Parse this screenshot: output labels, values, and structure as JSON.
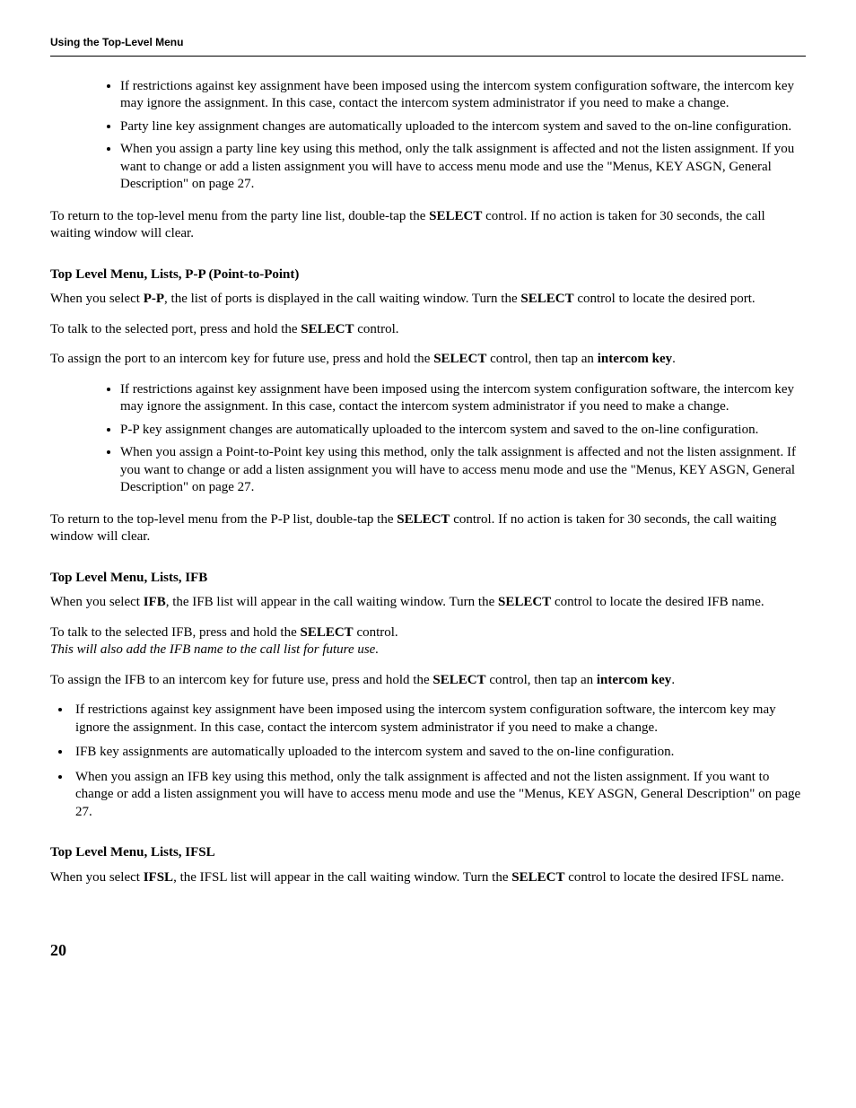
{
  "header": {
    "title": "Using the Top-Level Menu"
  },
  "section1": {
    "bullets": [
      "If restrictions against key assignment have been imposed using the intercom system configuration software, the intercom key may ignore the assignment. In this case, contact the intercom system administrator if you need to make a change.",
      "Party line key assignment changes are automatically uploaded to the intercom system and saved to the on-line configuration.",
      "When you assign a party line key using this method, only the talk assignment is affected and not the listen assignment. If you want to change or add a listen assignment you will have to access menu mode and use the \"Menus, KEY ASGN, General Description\" on page 27."
    ],
    "return_pre": "To return to the top-level menu from the party line list, double-tap the ",
    "return_bold": "SELECT",
    "return_post": " control. If no action is taken for 30 seconds, the call waiting window will clear."
  },
  "section2": {
    "title": "Top Level Menu, Lists, P-P (Point-to-Point)",
    "intro_a": "When you select ",
    "intro_b": "P-P",
    "intro_c": ", the list of ports is displayed in the call waiting window. Turn the ",
    "intro_d": "SELECT",
    "intro_e": " control to locate the desired port.",
    "talk_pre": "To talk to the selected port, press and hold the ",
    "talk_bold": "SELECT",
    "talk_post": " control.",
    "assign_a": "To assign the port to an intercom key for future use, press and hold the ",
    "assign_b": "SELECT",
    "assign_c": " control, then tap an ",
    "assign_d": "intercom key",
    "assign_e": ".",
    "bullets": [
      "If restrictions against key assignment have been imposed using the intercom system configuration software, the intercom key may ignore the assignment. In this case, contact the intercom system administrator if you need to make a change.",
      "P-P key assignment changes are automatically uploaded to the intercom system and saved to the on-line configuration.",
      "When you assign a Point-to-Point key using this method, only the talk assignment is affected and not the listen assignment. If you want to change or add a listen assignment you will have to access menu mode and use the \"Menus, KEY ASGN, General Description\" on page 27."
    ],
    "return_pre": "To return to the top-level menu from the P-P list, double-tap the ",
    "return_bold": "SELECT",
    "return_post": " control. If no action is taken for 30 seconds, the call waiting window will clear."
  },
  "section3": {
    "title": "Top Level Menu, Lists, IFB",
    "intro_a": "When you select ",
    "intro_b": "IFB",
    "intro_c": ", the IFB list will appear in the call waiting window. Turn the ",
    "intro_d": "SELECT",
    "intro_e": " control to locate the desired IFB name.",
    "talk_pre": "To talk to the selected IFB, press and hold the ",
    "talk_bold": "SELECT",
    "talk_post": " control.",
    "italic_note": "This will also add the IFB name to the call list for future use.",
    "assign_a": "To assign the IFB to an intercom key for future use, press and hold the ",
    "assign_b": "SELECT",
    "assign_c": " control, then tap an ",
    "assign_d": "intercom key",
    "assign_e": ".",
    "bullets": [
      "If restrictions against key assignment have been imposed using the intercom system configuration software, the intercom key may ignore the assignment. In this case, contact the intercom system administrator if you need to make a change.",
      "IFB key assignments are automatically uploaded to the intercom system and saved to the on-line configuration.",
      "When you assign an IFB key using this method, only the talk assignment is affected and not the listen assignment. If you want to change or add a listen assignment you will have to access menu mode and use the \"Menus, KEY ASGN, General Description\" on page 27."
    ]
  },
  "section4": {
    "title": "Top Level Menu, Lists, IFSL",
    "intro_a": "When you select ",
    "intro_b": "IFSL",
    "intro_c": ", the IFSL list will appear in the call waiting window. Turn the ",
    "intro_d": "SELECT",
    "intro_e": " control to locate the desired IFSL name."
  },
  "page_number": "20"
}
